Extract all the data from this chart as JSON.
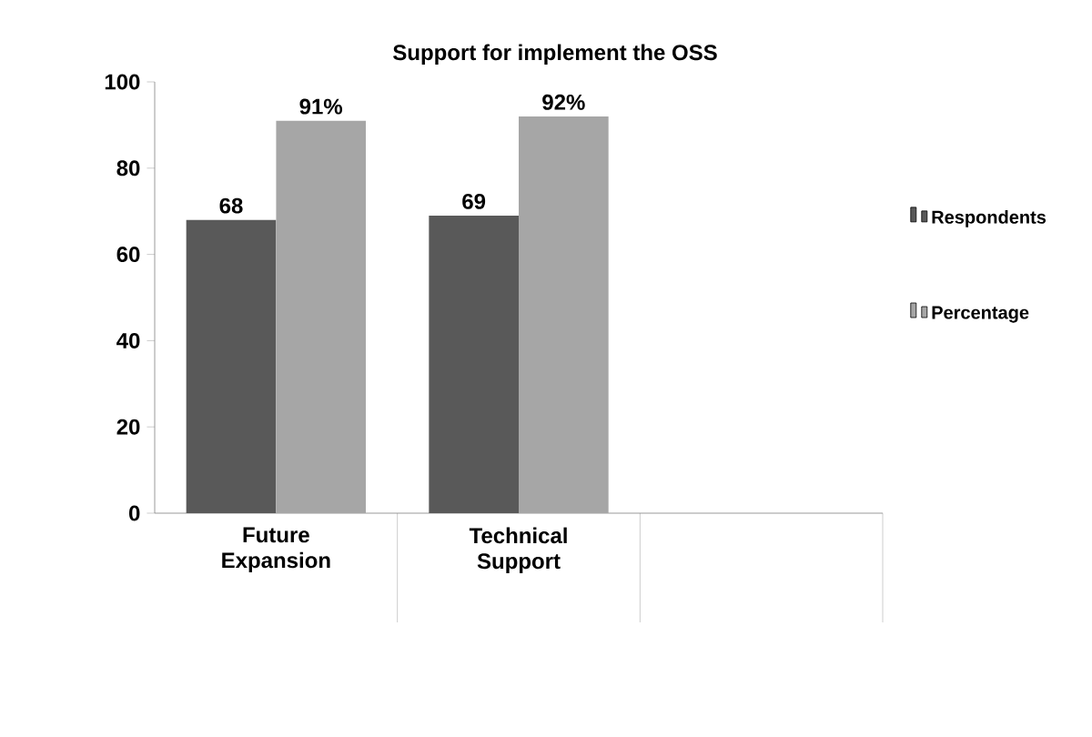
{
  "chart_data": {
    "type": "bar",
    "title": "Support for implement the OSS",
    "categories": [
      "Future Expansion",
      "Technical Support",
      null
    ],
    "series": [
      {
        "name": "Respondents",
        "color": "#595959",
        "values": [
          68,
          69,
          null
        ],
        "value_labels": [
          "68",
          "69",
          null
        ]
      },
      {
        "name": "Percentage",
        "color": "#a6a6a6",
        "values": [
          91,
          92,
          null
        ],
        "value_labels": [
          "91%",
          "92%",
          null
        ]
      }
    ],
    "ylim": [
      0,
      100
    ],
    "yticks": [
      0,
      20,
      40,
      60,
      80,
      100
    ],
    "grid": false,
    "legend": "right"
  }
}
